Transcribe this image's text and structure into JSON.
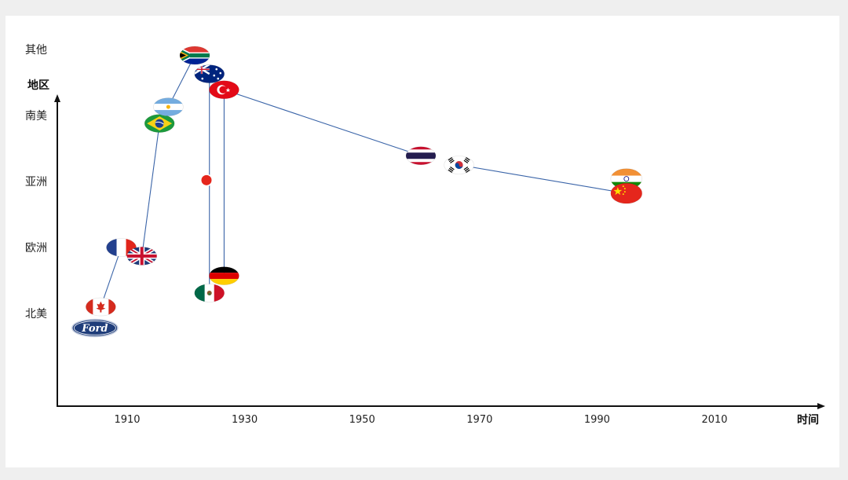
{
  "chart_data": {
    "type": "scatter",
    "ylabel": "地区",
    "xlabel": "时间",
    "x_ticks": [
      1910,
      1930,
      1950,
      1970,
      1990,
      2010
    ],
    "y_categories": [
      "北美",
      "欧洲",
      "亚洲",
      "南美",
      "其他"
    ],
    "points": [
      {
        "id": "ford",
        "label": "Ford",
        "x": 1904.5,
        "y": 0.78
      },
      {
        "id": "canada",
        "x": 1905.5,
        "y": 1.1
      },
      {
        "id": "france",
        "x": 1909,
        "y": 2.0
      },
      {
        "id": "uk",
        "x": 1912.5,
        "y": 1.87
      },
      {
        "id": "brazil",
        "x": 1915.5,
        "y": 3.88
      },
      {
        "id": "argentina",
        "x": 1917,
        "y": 4.13
      },
      {
        "id": "south-africa",
        "x": 1921.5,
        "y": 4.91
      },
      {
        "id": "australia",
        "x": 1924,
        "y": 4.63
      },
      {
        "id": "japan",
        "x": 1923.5,
        "y": 3.02
      },
      {
        "id": "mexico",
        "x": 1924,
        "y": 1.31
      },
      {
        "id": "turkey",
        "x": 1926.5,
        "y": 4.39
      },
      {
        "id": "germany",
        "x": 1926.5,
        "y": 1.57
      },
      {
        "id": "thailand",
        "x": 1960,
        "y": 3.39
      },
      {
        "id": "korea",
        "x": 1966.5,
        "y": 3.25
      },
      {
        "id": "india",
        "x": 1995,
        "y": 3.04
      },
      {
        "id": "china",
        "x": 1995,
        "y": 2.82
      }
    ],
    "connections": [
      [
        "canada",
        "france"
      ],
      [
        "uk",
        "brazil"
      ],
      [
        "argentina",
        "south-africa"
      ],
      [
        "australia",
        "mexico"
      ],
      [
        "turkey",
        "germany"
      ],
      [
        "turkey",
        "thailand"
      ],
      [
        "korea",
        "china"
      ]
    ],
    "line_color": "#3a64a8"
  }
}
